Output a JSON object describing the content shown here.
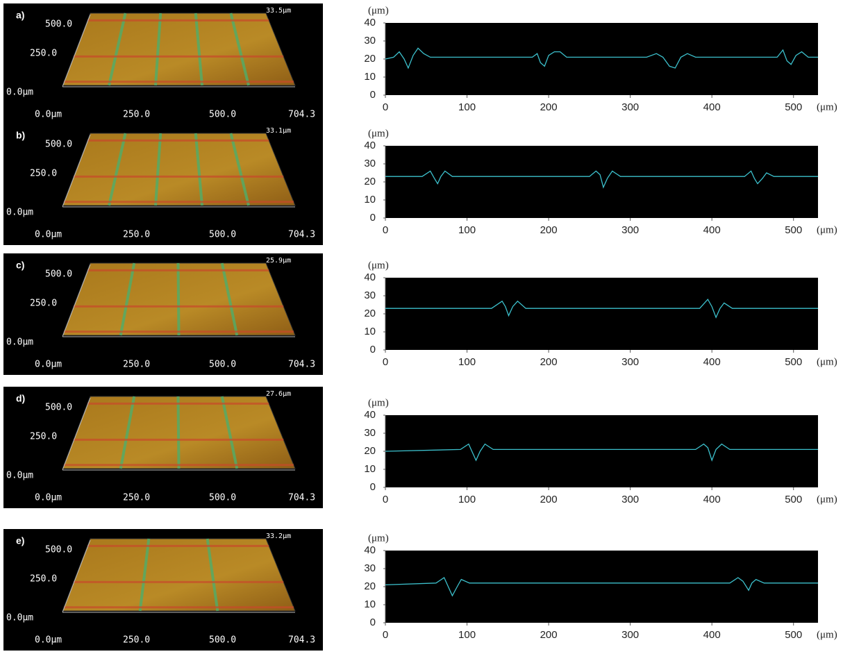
{
  "chart_data": [
    {
      "type": "line",
      "y_label": "(μm)",
      "x_label": "(μm)",
      "color": "#3cc0cc",
      "plot_background": "#000000",
      "xlim": [
        0,
        530
      ],
      "xticks": [
        0,
        100,
        200,
        300,
        400,
        500
      ],
      "ylim": [
        0,
        40
      ],
      "yticks": [
        0,
        10,
        20,
        30,
        40
      ],
      "x": [
        0,
        10,
        17,
        23,
        28,
        34,
        40,
        47,
        55,
        180,
        186,
        190,
        195,
        200,
        207,
        214,
        222,
        320,
        332,
        340,
        348,
        355,
        362,
        370,
        380,
        480,
        487,
        492,
        497,
        503,
        510,
        518,
        530
      ],
      "values": [
        20,
        21,
        24,
        20,
        15,
        22,
        26,
        23,
        21,
        21,
        23,
        18,
        16,
        22,
        24,
        24,
        21,
        21,
        23,
        21,
        16,
        15,
        21,
        23,
        21,
        21,
        25,
        19,
        17,
        22,
        24,
        21,
        21
      ]
    },
    {
      "type": "line",
      "y_label": "(μm)",
      "x_label": "(μm)",
      "color": "#3cc0cc",
      "plot_background": "#000000",
      "xlim": [
        0,
        530
      ],
      "xticks": [
        0,
        100,
        200,
        300,
        400,
        500
      ],
      "ylim": [
        0,
        40
      ],
      "yticks": [
        0,
        10,
        20,
        30,
        40
      ],
      "x": [
        0,
        45,
        55,
        60,
        64,
        68,
        73,
        82,
        250,
        258,
        263,
        267,
        272,
        278,
        288,
        440,
        448,
        452,
        456,
        462,
        467,
        476,
        530
      ],
      "values": [
        23,
        23,
        26,
        22,
        19,
        23,
        26,
        23,
        23,
        26,
        24,
        17,
        22,
        26,
        23,
        23,
        26,
        22,
        19,
        22,
        25,
        23,
        23
      ]
    },
    {
      "type": "line",
      "y_label": "(μm)",
      "x_label": "(μm)",
      "color": "#3cc0cc",
      "plot_background": "#000000",
      "xlim": [
        0,
        530
      ],
      "xticks": [
        0,
        100,
        200,
        300,
        400,
        500
      ],
      "ylim": [
        0,
        40
      ],
      "yticks": [
        0,
        10,
        20,
        30,
        40
      ],
      "x": [
        0,
        130,
        143,
        147,
        151,
        156,
        162,
        172,
        385,
        395,
        400,
        405,
        410,
        415,
        425,
        530
      ],
      "values": [
        23,
        23,
        27,
        24,
        19,
        24,
        27,
        23,
        23,
        28,
        24,
        18,
        23,
        26,
        23,
        23
      ]
    },
    {
      "type": "line",
      "y_label": "(μm)",
      "x_label": "(μm)",
      "color": "#3cc0cc",
      "plot_background": "#000000",
      "xlim": [
        0,
        530
      ],
      "xticks": [
        0,
        100,
        200,
        300,
        400,
        500
      ],
      "ylim": [
        0,
        40
      ],
      "yticks": [
        0,
        10,
        20,
        30,
        40
      ],
      "x": [
        0,
        92,
        102,
        106,
        111,
        116,
        122,
        132,
        380,
        390,
        395,
        400,
        405,
        412,
        422,
        530
      ],
      "values": [
        20,
        21,
        24,
        20,
        15,
        20,
        24,
        21,
        21,
        24,
        22,
        15,
        21,
        24,
        21,
        21
      ]
    },
    {
      "type": "line",
      "y_label": "(μm)",
      "x_label": "(μm)",
      "color": "#3cc0cc",
      "plot_background": "#000000",
      "xlim": [
        0,
        530
      ],
      "xticks": [
        0,
        100,
        200,
        300,
        400,
        500
      ],
      "ylim": [
        0,
        40
      ],
      "yticks": [
        0,
        10,
        20,
        30,
        40
      ],
      "x": [
        0,
        62,
        72,
        77,
        82,
        88,
        93,
        103,
        422,
        432,
        438,
        445,
        449,
        454,
        464,
        530
      ],
      "values": [
        21,
        22,
        25,
        20,
        15,
        20,
        24,
        22,
        22,
        25,
        23,
        18,
        22,
        24,
        22,
        22
      ]
    }
  ],
  "surface_images": [
    {
      "label": "a)",
      "max_height": "33.5μm",
      "y_ticks": [
        "500.0",
        "250.0",
        "0.0μm"
      ],
      "x_ticks": [
        "0.0μm",
        "250.0",
        "500.0",
        "704.3"
      ]
    },
    {
      "label": "b)",
      "max_height": "33.1μm",
      "y_ticks": [
        "500.0",
        "250.0",
        "0.0μm"
      ],
      "x_ticks": [
        "0.0μm",
        "250.0",
        "500.0",
        "704.3"
      ]
    },
    {
      "label": "c)",
      "max_height": "25.9μm",
      "y_ticks": [
        "500.0",
        "250.0",
        "0.0μm"
      ],
      "x_ticks": [
        "0.0μm",
        "250.0",
        "500.0",
        "704.3"
      ]
    },
    {
      "label": "d)",
      "max_height": "27.6μm",
      "y_ticks": [
        "500.0",
        "250.0",
        "0.0μm"
      ],
      "x_ticks": [
        "0.0μm",
        "250.0",
        "500.0",
        "704.3"
      ]
    },
    {
      "label": "e)",
      "max_height": "33.2μm",
      "y_ticks": [
        "500.0",
        "250.0",
        "0.0μm"
      ],
      "x_ticks": [
        "0.0μm",
        "250.0",
        "500.0",
        "704.3"
      ]
    }
  ]
}
